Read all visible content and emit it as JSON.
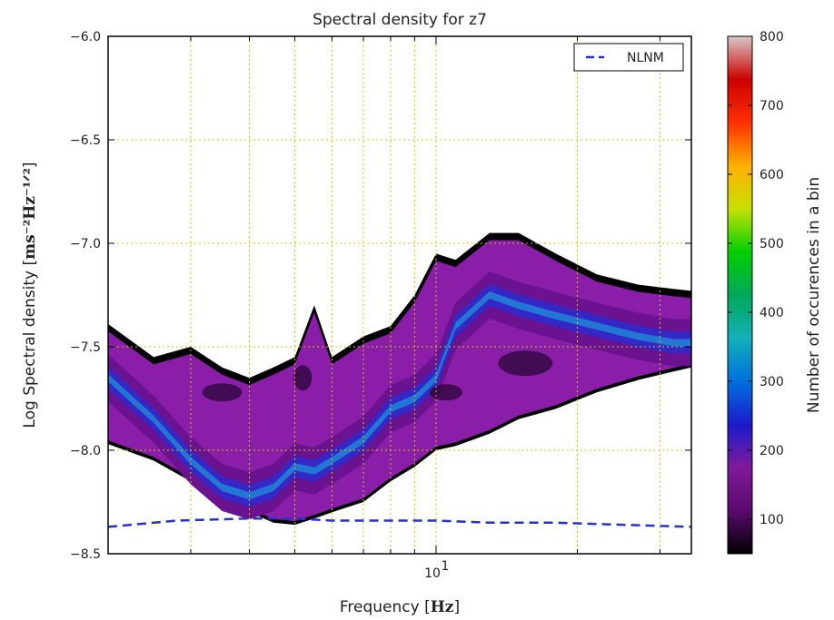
{
  "chart_data": {
    "type": "heatmap",
    "title": "Spectral density for z7",
    "xlabel": "Frequency",
    "xlabel_unit": "Hz",
    "ylabel": "Log Spectral density",
    "ylabel_unit": "ms⁻²Hz⁻¹ᐟ²",
    "x_scale": "log",
    "x_ticks": [
      {
        "value": 10,
        "label": "10",
        "sup": "1"
      }
    ],
    "ylim": [
      -8.5,
      -6.0
    ],
    "y_ticks": [
      -8.5,
      -8.0,
      -7.5,
      -7.0,
      -6.5,
      -6.0
    ],
    "y_tick_labels": [
      "−8.5",
      "−8.0",
      "−7.5",
      "−7.0",
      "−6.5",
      "−6.0"
    ],
    "grid": true,
    "legend_position": "top-right",
    "series": [
      {
        "name": "NLNM",
        "type": "line",
        "style": "dashed",
        "color": "#2233cc",
        "x": [
          2.0,
          2.8,
          4.0,
          5.0,
          6.0,
          8.0,
          10.0,
          13.0,
          18.0,
          25.0,
          35.0
        ],
        "y": [
          -8.37,
          -8.34,
          -8.33,
          -8.33,
          -8.34,
          -8.34,
          -8.34,
          -8.35,
          -8.35,
          -8.36,
          -8.37
        ]
      }
    ],
    "density": {
      "x": [
        2.0,
        2.5,
        3.0,
        3.5,
        4.0,
        4.5,
        5.0,
        5.5,
        6.0,
        7.0,
        8.0,
        9.0,
        10.0,
        11.0,
        13.0,
        15.0,
        18.0,
        22.0,
        27.0,
        32.0,
        35.0
      ],
      "upper": [
        -7.39,
        -7.55,
        -7.5,
        -7.6,
        -7.65,
        -7.6,
        -7.55,
        -7.3,
        -7.55,
        -7.45,
        -7.4,
        -7.25,
        -7.05,
        -7.08,
        -6.95,
        -6.95,
        -7.05,
        -7.15,
        -7.2,
        -7.22,
        -7.23
      ],
      "lower": [
        -7.97,
        -8.05,
        -8.15,
        -8.27,
        -8.3,
        -8.35,
        -8.36,
        -8.33,
        -8.3,
        -8.25,
        -8.15,
        -8.08,
        -8.0,
        -7.98,
        -7.92,
        -7.85,
        -7.8,
        -7.72,
        -7.66,
        -7.62,
        -7.6
      ],
      "band_center": [
        -7.65,
        -7.85,
        -8.05,
        -8.18,
        -8.22,
        -8.18,
        -8.08,
        -8.1,
        -8.05,
        -7.95,
        -7.8,
        -7.75,
        -7.65,
        -7.4,
        -7.25,
        -7.3,
        -7.35,
        -7.4,
        -7.45,
        -7.48,
        -7.48
      ]
    },
    "colorbar": {
      "label": "Number of occurences in a bin",
      "range": [
        50,
        800
      ],
      "ticks": [
        100,
        200,
        300,
        400,
        500,
        600,
        700,
        800
      ],
      "colors": [
        "#000000",
        "#5a0a6e",
        "#7f1a9a",
        "#1a1acc",
        "#0070dd",
        "#12b0b8",
        "#00a85a",
        "#00d000",
        "#c8e000",
        "#ffb000",
        "#ff3000",
        "#cc0000",
        "#d8c8c8"
      ]
    }
  }
}
